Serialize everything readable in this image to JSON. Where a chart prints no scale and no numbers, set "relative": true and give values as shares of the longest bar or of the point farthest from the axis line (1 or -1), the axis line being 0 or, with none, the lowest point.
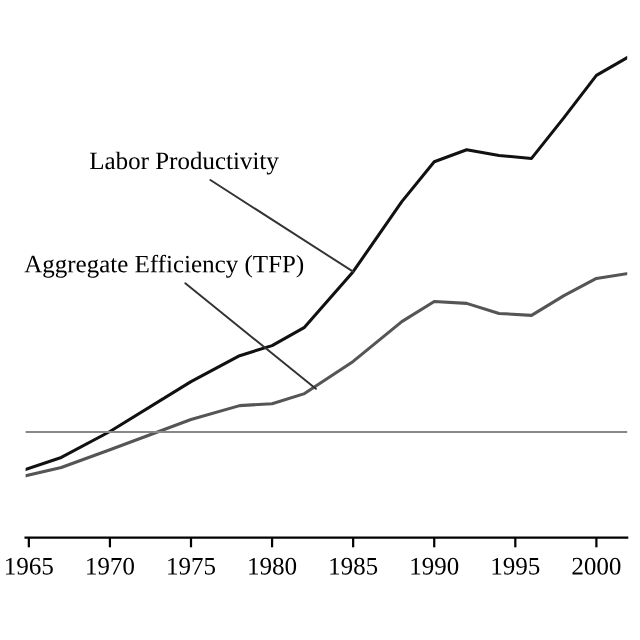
{
  "chart_data": {
    "type": "line",
    "relative": true,
    "x": [
      1964.8,
      1967,
      1970,
      1975,
      1978,
      1980,
      1982,
      1985,
      1988,
      1990,
      1992,
      1994,
      1996,
      1998,
      2000,
      2001.9
    ],
    "xlim": [
      1964.8,
      2001.9
    ],
    "xticks": [
      1965,
      1970,
      1975,
      1980,
      1985,
      1990,
      1995,
      2000
    ],
    "series": [
      {
        "color": "#111111",
        "values": [
          0.142,
          0.167,
          0.221,
          0.325,
          0.379,
          0.4,
          0.438,
          0.554,
          0.7,
          0.783,
          0.808,
          0.796,
          0.79,
          0.875,
          0.963,
          1.0
        ]
      },
      {
        "color": "#555555",
        "values": [
          0.129,
          0.146,
          0.183,
          0.246,
          0.275,
          0.279,
          0.3,
          0.367,
          0.45,
          0.492,
          0.488,
          0.467,
          0.463,
          0.504,
          0.54,
          0.55
        ]
      }
    ],
    "ref_lines": [
      {
        "axis": "y",
        "value": 0.22,
        "color": "#888888"
      }
    ],
    "annotations": [
      {
        "text": "Labor Productivity",
        "x": 1985,
        "y": 0.554
      },
      {
        "text": "Aggregate Efficiency (TFP)",
        "x": 1982.7,
        "y": 0.31
      }
    ],
    "grid": false,
    "legend": false,
    "marker": "none",
    "line_style": "solid"
  }
}
